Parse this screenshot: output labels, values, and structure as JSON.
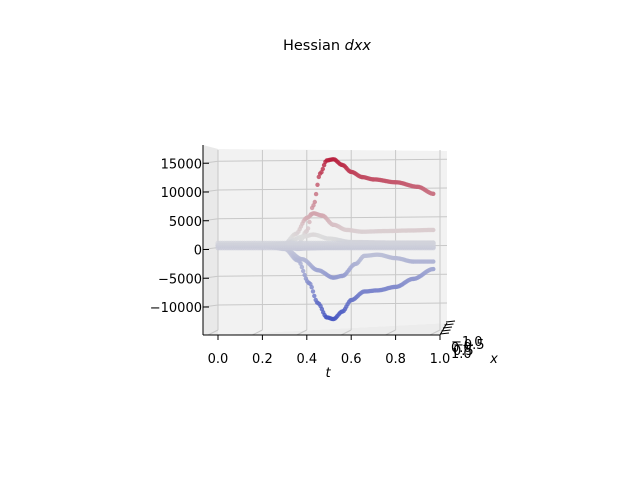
{
  "chart_data": {
    "type": "scatter",
    "projection": "3d",
    "title_prefix": "Hessian ",
    "title_var": "dxx",
    "xlabel": "t",
    "ylabel": "x",
    "xlim": [
      0.0,
      1.0
    ],
    "zlim": [
      -14000,
      17000
    ],
    "x_ticks": [
      "0.0",
      "0.2",
      "0.4",
      "0.6",
      "0.8",
      "1.0"
    ],
    "z_ticks": [
      "15000",
      "10000",
      "5000",
      "0",
      "−5000",
      "−10000"
    ],
    "depth_ticks": [
      "−1.0",
      "−0.5",
      "0.0",
      "0.5",
      "1.0"
    ],
    "colormap": "coolwarm",
    "colormap_colors": [
      "#3b4cc0",
      "#dddddd",
      "#b40426"
    ],
    "grid": true,
    "pane_color": "#f2f2f2",
    "series": [
      {
        "values": [
          [
            0.0,
            0
          ],
          [
            0.1,
            0
          ],
          [
            0.2,
            0
          ],
          [
            0.3,
            0
          ],
          [
            0.36,
            200
          ],
          [
            0.4,
            2500
          ],
          [
            0.43,
            7000
          ],
          [
            0.46,
            12500
          ],
          [
            0.49,
            14800
          ],
          [
            0.52,
            15000
          ],
          [
            0.56,
            14000
          ],
          [
            0.6,
            12800
          ],
          [
            0.65,
            11900
          ],
          [
            0.7,
            11500
          ],
          [
            0.8,
            11000
          ],
          [
            0.9,
            10200
          ],
          [
            0.97,
            9000
          ]
        ]
      },
      {
        "values": [
          [
            0.0,
            0
          ],
          [
            0.2,
            0
          ],
          [
            0.3,
            300
          ],
          [
            0.35,
            2000
          ],
          [
            0.4,
            4800
          ],
          [
            0.43,
            5600
          ],
          [
            0.47,
            5200
          ],
          [
            0.52,
            3600
          ],
          [
            0.58,
            2700
          ],
          [
            0.65,
            2400
          ],
          [
            0.75,
            2500
          ],
          [
            0.85,
            2600
          ],
          [
            0.97,
            2700
          ]
        ]
      },
      {
        "values": [
          [
            0.0,
            0
          ],
          [
            0.2,
            0
          ],
          [
            0.3,
            300
          ],
          [
            0.38,
            1500
          ],
          [
            0.43,
            1900
          ],
          [
            0.5,
            1200
          ],
          [
            0.6,
            600
          ],
          [
            0.8,
            500
          ],
          [
            0.97,
            500
          ]
        ]
      },
      {
        "values": [
          [
            0.0,
            0
          ],
          [
            0.2,
            0
          ],
          [
            0.3,
            -200
          ],
          [
            0.36,
            -600
          ],
          [
            0.4,
            -500
          ],
          [
            0.5,
            -400
          ],
          [
            0.7,
            -300
          ],
          [
            0.97,
            -300
          ]
        ]
      },
      {
        "values": [
          [
            0.0,
            0
          ],
          [
            0.2,
            0
          ],
          [
            0.3,
            -500
          ],
          [
            0.38,
            -2400
          ],
          [
            0.45,
            -4300
          ],
          [
            0.52,
            -5600
          ],
          [
            0.56,
            -5300
          ],
          [
            0.62,
            -3200
          ],
          [
            0.66,
            -1800
          ],
          [
            0.72,
            -1600
          ],
          [
            0.8,
            -2200
          ],
          [
            0.88,
            -2800
          ],
          [
            0.97,
            -2800
          ]
        ]
      },
      {
        "values": [
          [
            0.0,
            0
          ],
          [
            0.2,
            0
          ],
          [
            0.3,
            -600
          ],
          [
            0.36,
            -2600
          ],
          [
            0.41,
            -6500
          ],
          [
            0.45,
            -10000
          ],
          [
            0.49,
            -12500
          ],
          [
            0.52,
            -12800
          ],
          [
            0.56,
            -11500
          ],
          [
            0.6,
            -9500
          ],
          [
            0.66,
            -8000
          ],
          [
            0.72,
            -7800
          ],
          [
            0.8,
            -7200
          ],
          [
            0.88,
            -5800
          ],
          [
            0.97,
            -4100
          ]
        ]
      }
    ]
  }
}
